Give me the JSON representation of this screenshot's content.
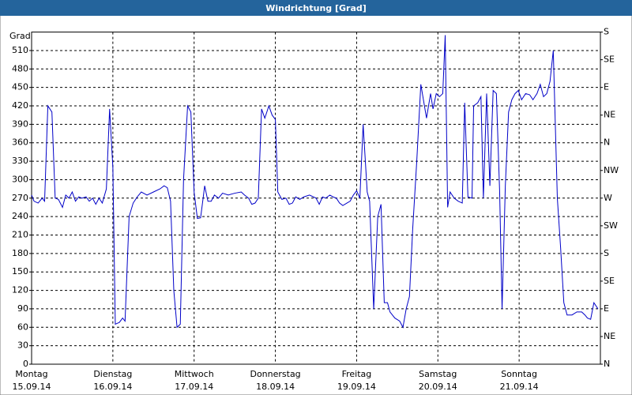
{
  "chart_data": {
    "type": "line",
    "title": "Windrichtung [Grad]",
    "ylabel": "Grad",
    "xlim": [
      0,
      7
    ],
    "ylim": [
      0,
      540
    ],
    "yticks": [
      0,
      30,
      60,
      90,
      120,
      150,
      180,
      210,
      240,
      270,
      300,
      330,
      360,
      390,
      420,
      450,
      480,
      510
    ],
    "y2lim": [
      0,
      540
    ],
    "y2ticks": [
      {
        "value": 0,
        "label": "N"
      },
      {
        "value": 45,
        "label": "NE"
      },
      {
        "value": 90,
        "label": "E"
      },
      {
        "value": 135,
        "label": "SE"
      },
      {
        "value": 180,
        "label": "S"
      },
      {
        "value": 225,
        "label": "SW"
      },
      {
        "value": 270,
        "label": "W"
      },
      {
        "value": 315,
        "label": "NW"
      },
      {
        "value": 360,
        "label": "N"
      },
      {
        "value": 405,
        "label": "NE"
      },
      {
        "value": 450,
        "label": "E"
      },
      {
        "value": 495,
        "label": "SE"
      },
      {
        "value": 540,
        "label": "S"
      }
    ],
    "xticks": [
      {
        "value": 0,
        "label": "Montag"
      },
      {
        "value": 1,
        "label": "Dienstag"
      },
      {
        "value": 2,
        "label": "Mittwoch"
      },
      {
        "value": 3,
        "label": "Donnerstag"
      },
      {
        "value": 4,
        "label": "Freitag"
      },
      {
        "value": 5,
        "label": "Samstag"
      },
      {
        "value": 6,
        "label": "Sonntag"
      }
    ],
    "xtick_dates": [
      "15.09.14",
      "16.09.14",
      "17.09.14",
      "18.09.14",
      "19.09.14",
      "20.09.14",
      "21.09.14"
    ],
    "grid": true,
    "series": [
      {
        "color": "#0000c8",
        "x": [
          0,
          0.03,
          0.08,
          0.13,
          0.16,
          0.2,
          0.25,
          0.29,
          0.33,
          0.38,
          0.42,
          0.46,
          0.5,
          0.54,
          0.58,
          0.62,
          0.67,
          0.71,
          0.75,
          0.79,
          0.83,
          0.87,
          0.92,
          0.96,
          1.0,
          1.03,
          1.08,
          1.12,
          1.15,
          1.2,
          1.25,
          1.3,
          1.35,
          1.42,
          1.5,
          1.58,
          1.63,
          1.67,
          1.71,
          1.75,
          1.79,
          1.83,
          1.87,
          1.92,
          1.96,
          2.0,
          2.04,
          2.08,
          2.13,
          2.17,
          2.21,
          2.25,
          2.3,
          2.35,
          2.42,
          2.5,
          2.58,
          2.62,
          2.67,
          2.71,
          2.75,
          2.79,
          2.83,
          2.87,
          2.92,
          2.96,
          3.0,
          3.03,
          3.08,
          3.13,
          3.17,
          3.21,
          3.25,
          3.3,
          3.35,
          3.42,
          3.5,
          3.54,
          3.58,
          3.62,
          3.67,
          3.71,
          3.75,
          3.79,
          3.83,
          3.88,
          3.92,
          3.96,
          4.0,
          4.04,
          4.08,
          4.13,
          4.16,
          4.21,
          4.26,
          4.3,
          4.34,
          4.38,
          4.41,
          4.47,
          4.53,
          4.57,
          4.61,
          4.65,
          4.69,
          4.74,
          4.79,
          4.86,
          4.91,
          4.94,
          4.98,
          5.02,
          5.06,
          5.09,
          5.12,
          5.15,
          5.2,
          5.25,
          5.3,
          5.33,
          5.37,
          5.42,
          5.44,
          5.49,
          5.53,
          5.56,
          5.6,
          5.64,
          5.68,
          5.72,
          5.76,
          5.79,
          5.83,
          5.87,
          5.91,
          5.95,
          5.99,
          6.03,
          6.08,
          6.13,
          6.17,
          6.22,
          6.26,
          6.3,
          6.34,
          6.38,
          6.42,
          6.47,
          6.51,
          6.55,
          6.59,
          6.65,
          6.71,
          6.77,
          6.81,
          6.84,
          6.88,
          6.92,
          6.97
        ],
        "values": [
          275,
          265,
          262,
          270,
          265,
          420,
          410,
          270,
          268,
          255,
          275,
          270,
          280,
          265,
          272,
          270,
          272,
          265,
          270,
          260,
          270,
          262,
          285,
          415,
          320,
          65,
          68,
          75,
          70,
          240,
          262,
          272,
          280,
          275,
          280,
          285,
          290,
          287,
          265,
          120,
          60,
          65,
          300,
          420,
          410,
          280,
          237,
          238,
          290,
          265,
          265,
          275,
          270,
          278,
          275,
          278,
          280,
          275,
          270,
          260,
          262,
          270,
          415,
          400,
          420,
          405,
          398,
          280,
          268,
          270,
          260,
          262,
          272,
          268,
          272,
          275,
          270,
          260,
          272,
          270,
          275,
          272,
          270,
          262,
          258,
          262,
          265,
          275,
          282,
          270,
          390,
          280,
          265,
          90,
          240,
          260,
          100,
          100,
          85,
          75,
          70,
          60,
          90,
          110,
          220,
          330,
          455,
          400,
          440,
          415,
          440,
          435,
          440,
          535,
          255,
          280,
          270,
          265,
          262,
          425,
          272,
          270,
          420,
          425,
          435,
          270,
          440,
          290,
          445,
          440,
          280,
          90,
          290,
          410,
          430,
          440,
          445,
          430,
          440,
          438,
          430,
          440,
          455,
          435,
          440,
          460,
          510,
          270,
          190,
          100,
          80,
          80,
          85,
          85,
          80,
          75,
          73,
          100,
          90
        ]
      }
    ]
  }
}
